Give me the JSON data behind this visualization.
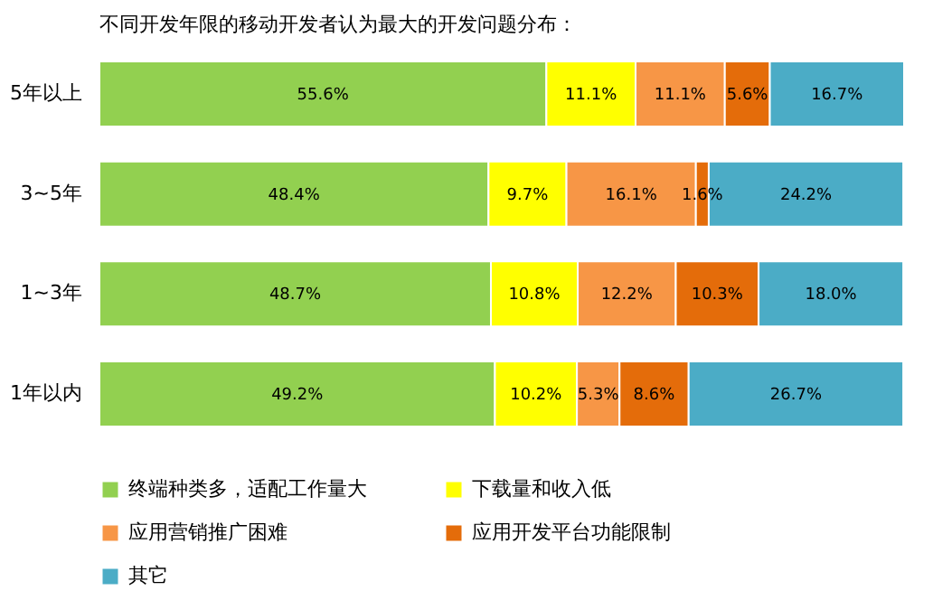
{
  "chart_data": {
    "type": "bar",
    "orientation": "horizontal",
    "stacked": true,
    "title": "不同开发年限的移动开发者认为最大的开发问题分布：",
    "categories": [
      "5年以上",
      "3~5年",
      "1~3年",
      "1年以内"
    ],
    "xlim": [
      0,
      100.1
    ],
    "tick_labels": "y",
    "grid": false,
    "legend": "bottom",
    "series": [
      {
        "name": "终端种类多，适配工作量大",
        "color": "#92d050",
        "values": [
          55.6,
          48.4,
          48.7,
          49.2
        ],
        "value_labels": [
          "55.6%",
          "48.4%",
          "48.7%",
          "49.2%"
        ]
      },
      {
        "name": "下载量和收入低",
        "color": "#ffff00",
        "values": [
          11.1,
          9.7,
          10.8,
          10.2
        ],
        "value_labels": [
          "11.1%",
          "9.7%",
          "10.8%",
          "10.2%"
        ]
      },
      {
        "name": "应用营销推广困难",
        "color": "#f79646",
        "values": [
          11.1,
          16.1,
          12.2,
          5.3
        ],
        "value_labels": [
          "11.1%",
          "16.1%",
          "12.2%",
          "5.3%"
        ]
      },
      {
        "name": "应用开发平台功能限制",
        "color": "#e46c0a",
        "values": [
          5.6,
          1.6,
          10.3,
          8.6
        ],
        "value_labels": [
          "5.6%",
          "1.6%",
          "10.3%",
          "8.6%"
        ]
      },
      {
        "name": "其它",
        "color": "#4bacc6",
        "values": [
          16.7,
          24.2,
          18.0,
          26.7
        ],
        "value_labels": [
          "16.7%",
          "24.2%",
          "18.0%",
          "26.7%"
        ]
      }
    ]
  }
}
